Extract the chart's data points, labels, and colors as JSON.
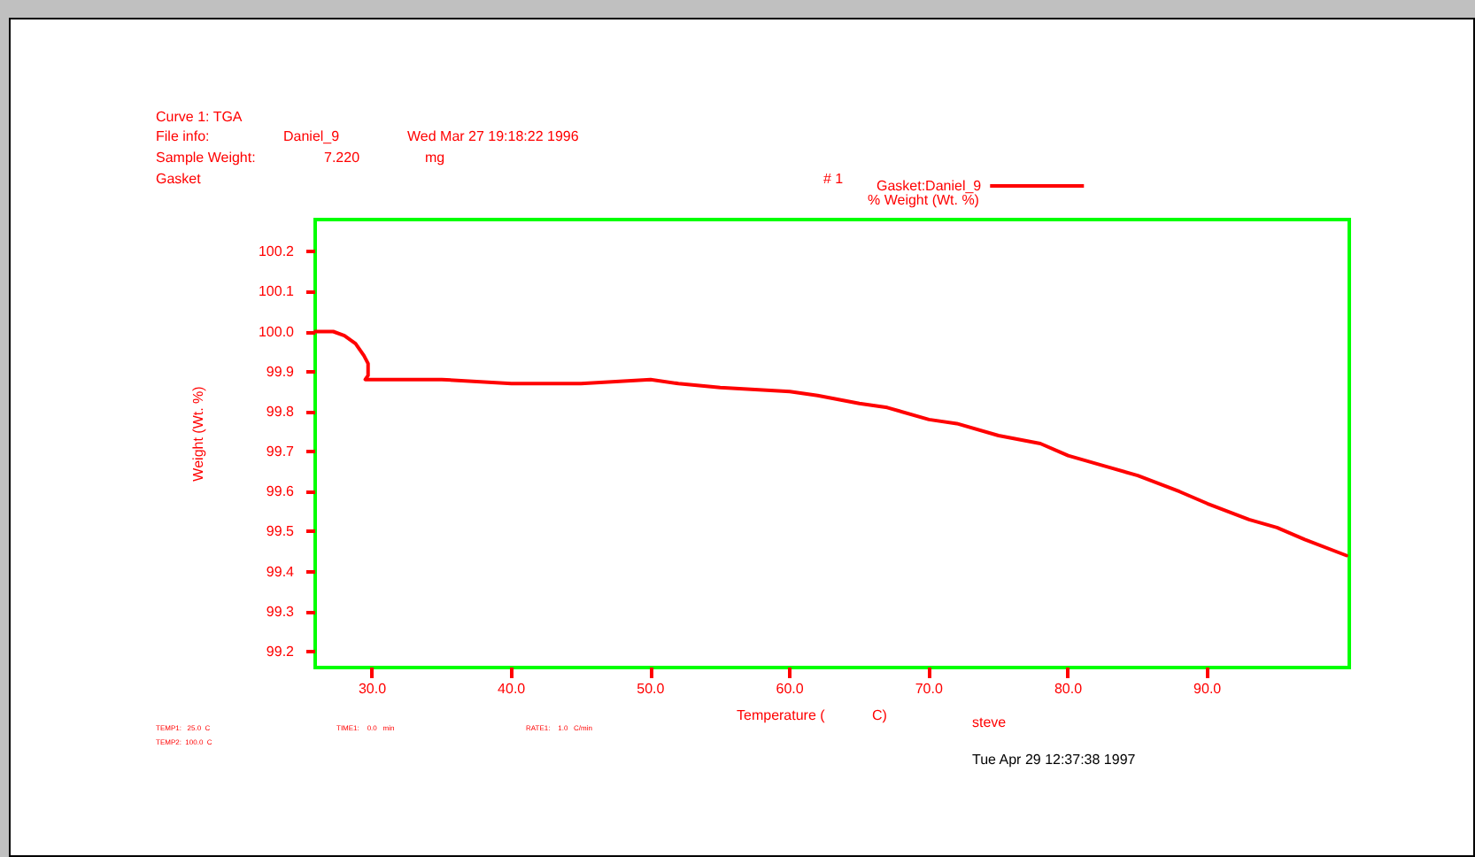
{
  "chart_data": {
    "type": "line",
    "title": "Curve 1: TGA",
    "xlabel": "Temperature (            C)",
    "ylabel": "Weight (Wt. %)",
    "annotations": [
      "File info:",
      "Daniel_9",
      "Wed Mar 27 19:18:22 1996",
      "Sample Weight:",
      "7.220",
      "mg",
      "Gasket",
      "# 1",
      "% Weight (Wt. %)",
      "TEMP1:   25.0  C",
      "TEMP2:  100.0  C",
      "TIME1:    0.0   min",
      "RATE1:    1.0   C/min",
      "steve",
      "Tue Apr 29 12:37:38 1997"
    ],
    "series": [
      {
        "name": "Gasket:Daniel_9",
        "color": "#ff0000",
        "x": [
          25.9,
          26.5,
          27.2,
          28.0,
          28.8,
          29.4,
          29.7,
          29.7,
          29.5,
          31,
          35,
          40,
          45,
          50,
          52,
          55,
          60,
          62,
          65,
          67,
          70,
          72,
          75,
          78,
          80,
          83,
          85,
          88,
          90,
          93,
          95,
          97,
          100
        ],
        "values": [
          100.0,
          100.0,
          100.0,
          99.99,
          99.97,
          99.94,
          99.92,
          99.89,
          99.88,
          99.88,
          99.88,
          99.87,
          99.87,
          99.88,
          99.87,
          99.86,
          99.85,
          99.84,
          99.82,
          99.81,
          99.78,
          99.77,
          99.74,
          99.72,
          99.69,
          99.66,
          99.64,
          99.6,
          99.57,
          99.53,
          99.51,
          99.48,
          99.44
        ]
      }
    ],
    "xlim": [
      25.9,
      100.2
    ],
    "ylim": [
      99.16,
      100.28
    ],
    "xticks": [
      {
        "value": 30,
        "label": "30.0"
      },
      {
        "value": 40,
        "label": "40.0"
      },
      {
        "value": 50,
        "label": "50.0"
      },
      {
        "value": 60,
        "label": "60.0"
      },
      {
        "value": 70,
        "label": "70.0"
      },
      {
        "value": 80,
        "label": "80.0"
      },
      {
        "value": 90,
        "label": "90.0"
      }
    ],
    "yticks": [
      99.2,
      99.3,
      99.4,
      99.5,
      99.6,
      99.7,
      99.8,
      99.9,
      {
        "value": 100,
        "label": "100.0"
      },
      100.1,
      100.2
    ],
    "grid": false,
    "legend": "top right",
    "marker": "none"
  }
}
